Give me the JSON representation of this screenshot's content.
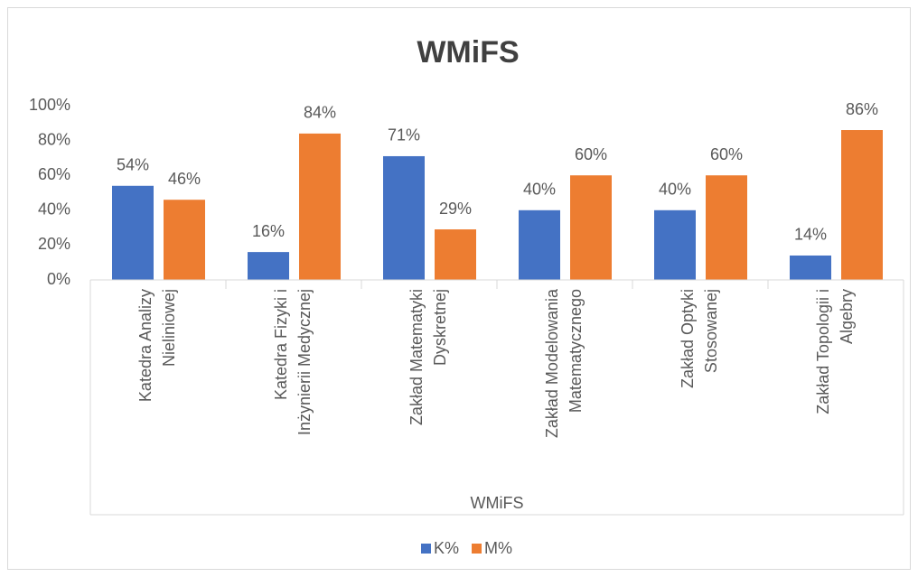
{
  "chart_data": {
    "type": "bar",
    "title": "WMiFS",
    "x_label": "WMiFS",
    "categories": [
      "Katedra Analizy\nNieliniowej",
      "Katedra Fizyki i\nInżynierii Medycznej",
      "Zakład Matematyki\nDyskretnej",
      "Zakład Modelowania\nMatematycznego",
      "Zakład Optyki\nStosowanej",
      "Zakład Topologii i\nAlgebry"
    ],
    "series": [
      {
        "name": "K%",
        "color": "#4472c4",
        "values": [
          54,
          16,
          71,
          40,
          40,
          14
        ],
        "value_labels": [
          "54%",
          "16%",
          "71%",
          "40%",
          "40%",
          "14%"
        ]
      },
      {
        "name": "M%",
        "color": "#ed7d31",
        "values": [
          46,
          84,
          29,
          60,
          60,
          86
        ],
        "value_labels": [
          "46%",
          "84%",
          "29%",
          "60%",
          "60%",
          "86%"
        ]
      }
    ],
    "ylim": [
      0,
      100
    ],
    "yticks": [
      {
        "value": 0,
        "label": "0%"
      },
      {
        "value": 20,
        "label": "20%"
      },
      {
        "value": 40,
        "label": "40%"
      },
      {
        "value": 60,
        "label": "60%"
      },
      {
        "value": 80,
        "label": "80%"
      },
      {
        "value": 100,
        "label": "100%"
      }
    ],
    "grid": false,
    "legend": "bottom"
  }
}
